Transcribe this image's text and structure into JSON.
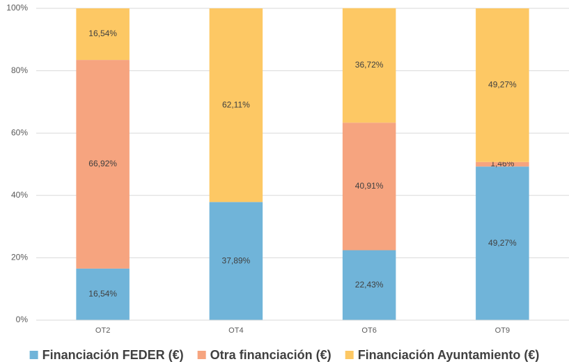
{
  "chart_data": {
    "type": "stacked_bar",
    "categories": [
      "OT2",
      "OT4",
      "OT6",
      "OT9"
    ],
    "series": [
      {
        "name": "Financiación FEDER (€)",
        "color": "#70b4d9",
        "values": [
          16.54,
          37.89,
          22.43,
          49.27
        ],
        "value_labels": [
          "16,54%",
          "37,89%",
          "22,43%",
          "49,27%"
        ]
      },
      {
        "name": "Otra financiación (€)",
        "color": "#f6a47f",
        "values": [
          66.92,
          0,
          40.91,
          1.46
        ],
        "value_labels": [
          "66,92%",
          null,
          "40,91%",
          "1,46%"
        ]
      },
      {
        "name": "Financiación Ayuntamiento (€)",
        "color": "#fdc864",
        "values": [
          16.54,
          62.11,
          36.72,
          49.27
        ],
        "value_labels": [
          "16,54%",
          "62,11%",
          "36,72%",
          "49,27%"
        ]
      }
    ],
    "ylim": [
      0,
      100
    ],
    "yticks": [
      {
        "value": 0,
        "label": "0%"
      },
      {
        "value": 20,
        "label": "20%"
      },
      {
        "value": 40,
        "label": "40%"
      },
      {
        "value": 60,
        "label": "60%"
      },
      {
        "value": 80,
        "label": "80%"
      },
      {
        "value": 100,
        "label": "100%"
      }
    ],
    "grid": true,
    "legend": "bottom"
  }
}
